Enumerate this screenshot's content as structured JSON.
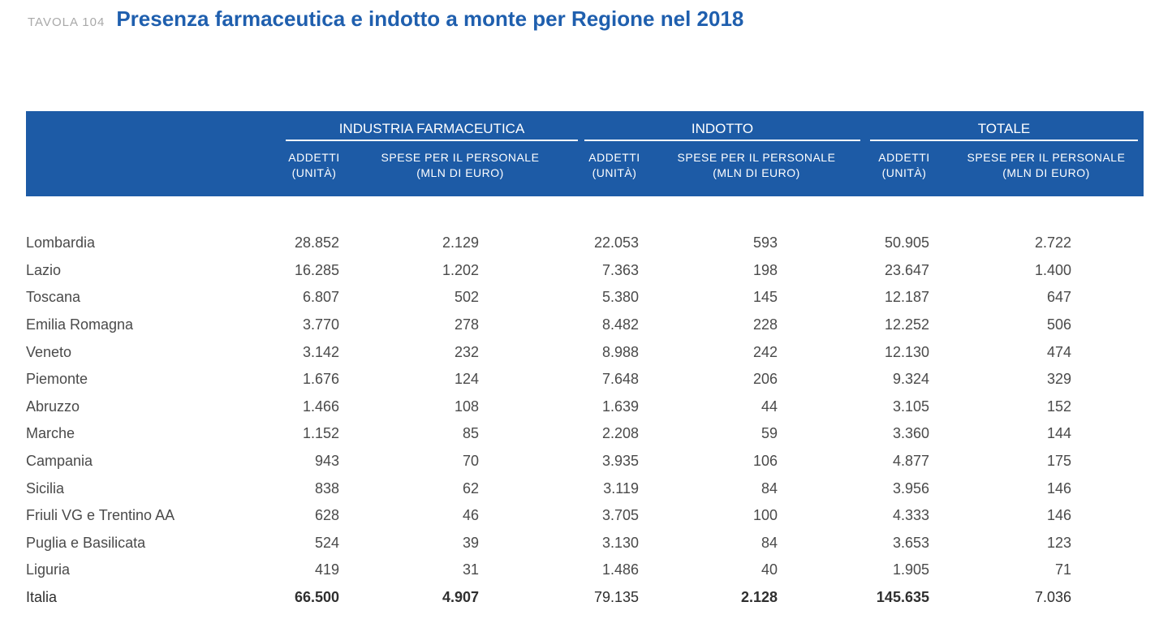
{
  "header": {
    "tavola": "TAVOLA 104",
    "title": "Presenza farmaceutica e indotto a monte per Regione nel 2018"
  },
  "groups": [
    "INDUSTRIA FARMACEUTICA",
    "INDOTTO",
    "TOTALE"
  ],
  "subheaders": {
    "addetti_1": "ADDETTI",
    "addetti_2": "(UNITÀ)",
    "spese_1": "SPESE PER IL PERSONALE",
    "spese_2": "(MLN DI EURO)"
  },
  "rows": [
    [
      "Lombardia",
      "28.852",
      "2.129",
      "22.053",
      "593",
      "50.905",
      "2.722"
    ],
    [
      "Lazio",
      "16.285",
      "1.202",
      "7.363",
      "198",
      "23.647",
      "1.400"
    ],
    [
      "Toscana",
      "6.807",
      "502",
      "5.380",
      "145",
      "12.187",
      "647"
    ],
    [
      "Emilia Romagna",
      "3.770",
      "278",
      "8.482",
      "228",
      "12.252",
      "506"
    ],
    [
      "Veneto",
      "3.142",
      "232",
      "8.988",
      "242",
      "12.130",
      "474"
    ],
    [
      "Piemonte",
      "1.676",
      "124",
      "7.648",
      "206",
      "9.324",
      "329"
    ],
    [
      "Abruzzo",
      "1.466",
      "108",
      "1.639",
      "44",
      "3.105",
      "152"
    ],
    [
      "Marche",
      "1.152",
      "85",
      "2.208",
      "59",
      "3.360",
      "144"
    ],
    [
      "Campania",
      "943",
      "70",
      "3.935",
      "106",
      "4.877",
      "175"
    ],
    [
      "Sicilia",
      "838",
      "62",
      "3.119",
      "84",
      "3.956",
      "146"
    ],
    [
      "Friuli VG e Trentino AA",
      "628",
      "46",
      "3.705",
      "100",
      "4.333",
      "146"
    ],
    [
      "Puglia e Basilicata",
      "524",
      "39",
      "3.130",
      "84",
      "3.653",
      "123"
    ],
    [
      "Liguria",
      "419",
      "31",
      "1.486",
      "40",
      "1.905",
      "71"
    ]
  ],
  "total": [
    "Italia",
    "66.500",
    "4.907",
    "79.135",
    "2.128",
    "145.635",
    "7.036"
  ]
}
